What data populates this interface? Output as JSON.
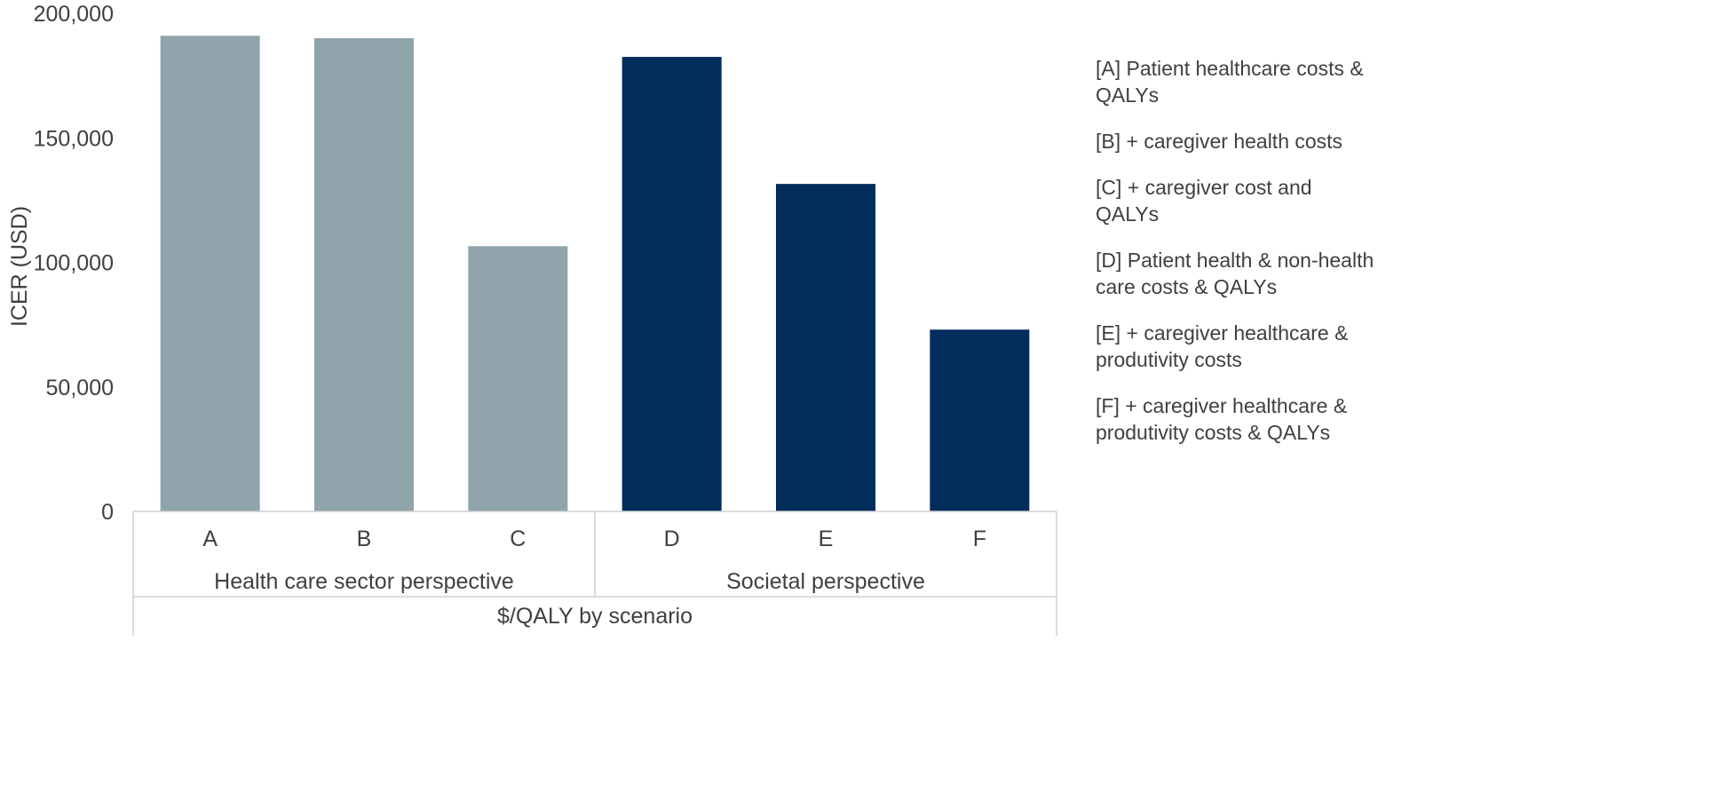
{
  "chart_data": {
    "type": "bar",
    "ylabel": "ICER (USD)",
    "xlabel": "$/QALY by scenario",
    "ylim": [
      0,
      200000
    ],
    "yticks": [
      0,
      50000,
      100000,
      150000,
      200000
    ],
    "ytick_labels": [
      "0",
      "50,000",
      "100,000",
      "150,000",
      "200,000"
    ],
    "grid": false,
    "categories": [
      "A",
      "B",
      "C",
      "D",
      "E",
      "F"
    ],
    "values": [
      191000,
      190000,
      106500,
      182500,
      131500,
      73000
    ],
    "groups": [
      {
        "label": "Health care sector perspective",
        "categories": [
          "A",
          "B",
          "C"
        ],
        "color": "#8fa5ab"
      },
      {
        "label": "Societal perspective",
        "categories": [
          "D",
          "E",
          "F"
        ],
        "color": "#002d5c"
      }
    ]
  },
  "legend": {
    "placement": "right",
    "items": [
      "[A] Patient healthcare costs & QALYs",
      "[B] + caregiver health costs",
      "[C] + caregiver cost and QALYs",
      "[D] Patient health & non-health care costs & QALYs",
      "[E] + caregiver healthcare & produtivity costs",
      "[F] + caregiver healthcare  & produtivity costs & QALYs"
    ]
  }
}
